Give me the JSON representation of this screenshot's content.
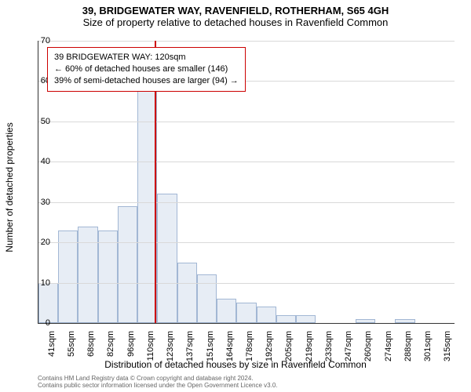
{
  "title_line1": "39, BRIDGEWATER WAY, RAVENFIELD, ROTHERHAM, S65 4GH",
  "title_line2": "Size of property relative to detached houses in Ravenfield Common",
  "title1_fontsize": 13,
  "title2_fontsize": 13,
  "xlabel": "Distribution of detached houses by size in Ravenfield Common",
  "ylabel": "Number of detached properties",
  "axis_label_fontsize": 12,
  "tick_fontsize": 11,
  "footnote_line1": "Contains HM Land Registry data © Crown copyright and database right 2024.",
  "footnote_line2": "Contains public sector information licensed under the Open Government Licence v3.0.",
  "footnote_fontsize": 8,
  "footnote_color": "#666666",
  "chart": {
    "type": "histogram",
    "ylim": [
      0,
      70
    ],
    "ytick_step": 10,
    "yticks": [
      0,
      10,
      20,
      30,
      40,
      50,
      60,
      70
    ],
    "grid_color": "#d9d9d9",
    "axis_color": "#333333",
    "bar_fill": "#e7edf5",
    "bar_border": "#a2b7d4",
    "background_color": "#ffffff",
    "x_labels": [
      "41sqm",
      "55sqm",
      "68sqm",
      "82sqm",
      "96sqm",
      "110sqm",
      "123sqm",
      "137sqm",
      "151sqm",
      "164sqm",
      "178sqm",
      "192sqm",
      "205sqm",
      "219sqm",
      "233sqm",
      "247sqm",
      "260sqm",
      "274sqm",
      "288sqm",
      "301sqm",
      "315sqm"
    ],
    "values": [
      10,
      23,
      24,
      23,
      29,
      58,
      32,
      15,
      12,
      6,
      5,
      4,
      2,
      2,
      0,
      0,
      1,
      0,
      1,
      0,
      0
    ],
    "bar_width_ratio": 1.0,
    "marker": {
      "color": "#cc0000",
      "position_index": 5.85,
      "info": {
        "border_color": "#cc0000",
        "fontsize": 11,
        "line1": "39 BRIDGEWATER WAY: 120sqm",
        "line2": "← 60% of detached houses are smaller (146)",
        "line3": "39% of semi-detached houses are larger (94) →"
      }
    }
  }
}
